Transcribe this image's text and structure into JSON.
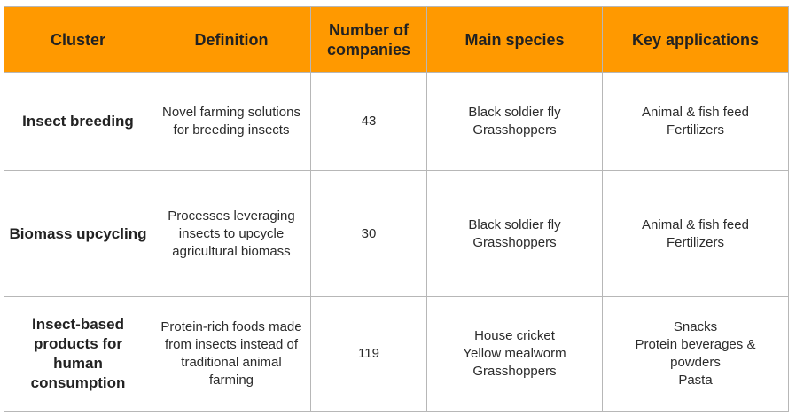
{
  "table": {
    "headers": [
      "Cluster",
      "Definition",
      "Number of companies",
      "Main species",
      "Key applications"
    ],
    "rows": [
      {
        "cluster": "Insect breeding",
        "definition": "Novel farming solutions for breeding insects",
        "companies": "43",
        "species": [
          "Black soldier fly",
          "Grasshoppers"
        ],
        "applications": [
          "Animal & fish feed",
          "Fertilizers"
        ]
      },
      {
        "cluster": "Biomass upcycling",
        "definition": "Processes leveraging insects to upcycle agricultural biomass",
        "companies": "30",
        "species": [
          "Black soldier fly",
          "Grasshoppers"
        ],
        "applications": [
          "Animal & fish feed",
          "Fertilizers"
        ]
      },
      {
        "cluster": "Insect-based products for human consumption",
        "definition": "Protein-rich foods made from insects instead of traditional animal farming",
        "companies": "119",
        "species": [
          "House cricket",
          "Yellow mealworm",
          "Grasshoppers"
        ],
        "applications": [
          "Snacks",
          "Protein beverages & powders",
          "Pasta"
        ]
      }
    ]
  },
  "colors": {
    "header_bg": "#ff9900",
    "border": "#b7b7b7",
    "text": "#2b2b2b"
  }
}
